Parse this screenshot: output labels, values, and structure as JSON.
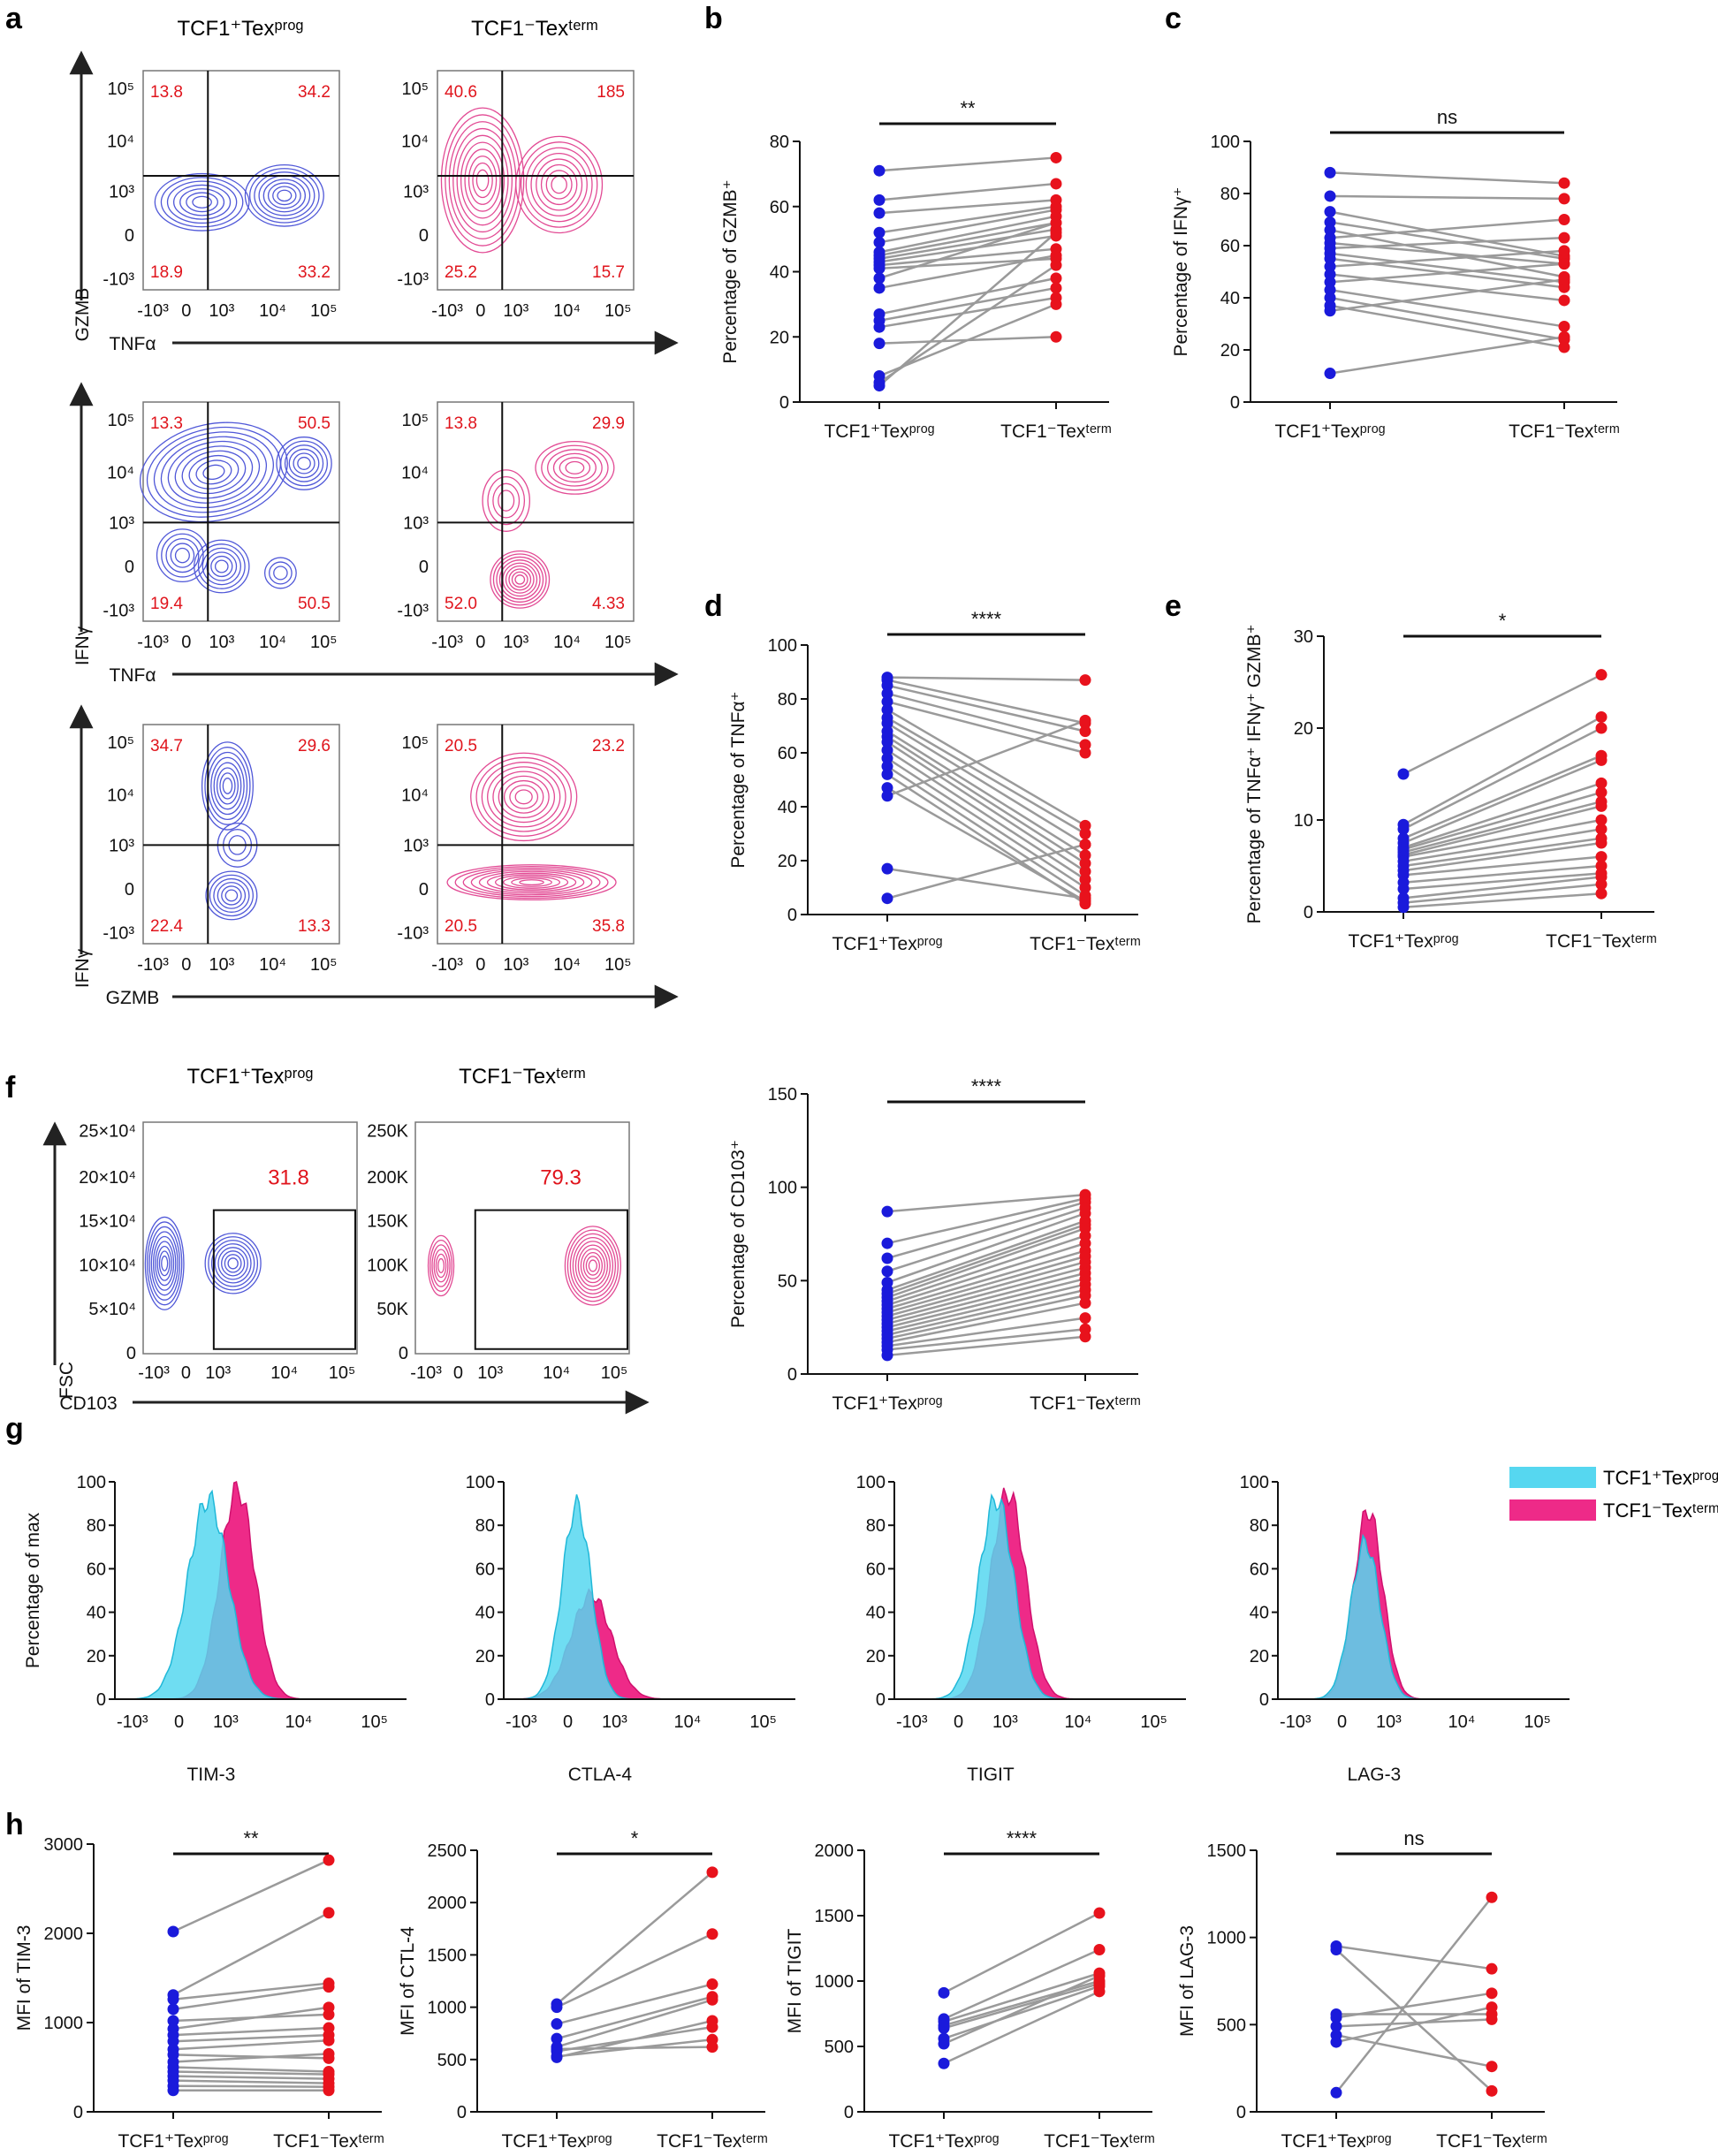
{
  "panel_labels": [
    "a",
    "b",
    "c",
    "d",
    "e",
    "f",
    "g",
    "h"
  ],
  "colors": {
    "prog": "#1a1adb",
    "term": "#e8121c",
    "prog_contour": "#5058d8",
    "term_contour": "#e24a94",
    "prog_fill": "#56d7f0",
    "term_fill": "#ee2a88",
    "overlap_fill": "#8a8ad2",
    "line": "#9a9a9a"
  },
  "flow_titles": {
    "prog": "TCF1⁺Texᵖʳᵒᵍ",
    "term": "TCF1⁻Texᵗᵉʳᵐ"
  },
  "group_labels": {
    "prog": "TCF1⁺Texᵖʳᵒᵍ",
    "term": "TCF1⁻Texᵗᵉʳᵐ"
  },
  "log_ticks": [
    "10⁵",
    "10⁴",
    "10³",
    "0",
    "-10³"
  ],
  "log_ticks_x": [
    "-10³",
    "0",
    "10³",
    "10⁴",
    "10⁵"
  ],
  "flow_rows": [
    {
      "x_axis": "TNFα",
      "y_axis": "GZMB",
      "prog": {
        "ul": "13.8",
        "ur": "34.2",
        "ll": "18.9",
        "lr": "33.2"
      },
      "term": {
        "ul": "40.6",
        "ur": "185",
        "ll": "25.2",
        "lr": "15.7"
      }
    },
    {
      "x_axis": "TNFα",
      "y_axis": "IFNγ",
      "prog": {
        "ul": "13.3",
        "ur": "50.5",
        "ll": "19.4",
        "lr": "50.5"
      },
      "term": {
        "ul": "13.8",
        "ur": "29.9",
        "ll": "52.0",
        "lr": "4.33"
      }
    },
    {
      "x_axis": "GZMB",
      "y_axis": "IFNγ",
      "prog": {
        "ul": "34.7",
        "ur": "29.6",
        "ll": "22.4",
        "lr": "13.3"
      },
      "term": {
        "ul": "20.5",
        "ur": "23.2",
        "ll": "20.5",
        "lr": "35.8"
      }
    }
  ],
  "cd103": {
    "x_axis": "CD103",
    "y_axis": "FSC",
    "prog_gate": "31.8",
    "term_gate": "79.3",
    "prog_yticks": [
      "25×10⁴",
      "20×10⁴",
      "15×10⁴",
      "10×10⁴",
      "5×10⁴",
      "0"
    ],
    "term_yticks": [
      "250K",
      "200K",
      "150K",
      "100K",
      "50K",
      "0"
    ]
  },
  "hist_legend": {
    "prog": "TCF1⁺Texᵖʳᵒᵍ",
    "term": "TCF1⁻Texᵗᵉʳᵐ"
  },
  "chart_data": [
    {
      "id": "b",
      "type": "scatter",
      "paired": true,
      "ylabel": "Percentage of GZMB⁺",
      "ylim": [
        0,
        80
      ],
      "yticks": [
        0,
        20,
        40,
        60,
        80
      ],
      "significance": "**",
      "prog": [
        71,
        62,
        58,
        52,
        49,
        46,
        45,
        44,
        43,
        42,
        41,
        38,
        35,
        27,
        25,
        23,
        18,
        8,
        6,
        5
      ],
      "term": [
        75,
        67,
        62,
        60,
        59,
        57,
        55,
        53,
        51,
        47,
        44,
        55,
        45,
        38,
        35,
        32,
        20,
        30,
        42,
        52
      ]
    },
    {
      "id": "c",
      "type": "scatter",
      "paired": true,
      "ylabel": "Percentage of IFNγ⁺",
      "ylim": [
        0,
        100
      ],
      "yticks": [
        0,
        20,
        40,
        60,
        80,
        100
      ],
      "significance": "ns",
      "prog": [
        88,
        79,
        73,
        69,
        66,
        63,
        61,
        59,
        57,
        55,
        52,
        49,
        46,
        43,
        40,
        37,
        35,
        11
      ],
      "term": [
        84,
        78,
        56,
        55,
        48,
        70,
        53,
        63,
        46,
        44,
        58,
        39,
        53,
        29,
        24,
        21,
        47,
        25
      ]
    },
    {
      "id": "d",
      "type": "scatter",
      "paired": true,
      "ylabel": "Percentage of TNFα⁺",
      "ylim": [
        0,
        100
      ],
      "yticks": [
        0,
        20,
        40,
        60,
        80,
        100
      ],
      "significance": "****",
      "prog": [
        88,
        87,
        85,
        82,
        79,
        76,
        73,
        71,
        68,
        66,
        64,
        61,
        58,
        55,
        52,
        47,
        44,
        17,
        6
      ],
      "term": [
        87,
        71,
        68,
        63,
        60,
        33,
        30,
        26,
        22,
        19,
        16,
        13,
        10,
        7,
        4,
        5,
        72,
        6,
        26
      ]
    },
    {
      "id": "e",
      "type": "scatter",
      "paired": true,
      "ylabel": "Percentage of TNFα⁺ IFNγ⁺ GZMB⁺",
      "ylim": [
        0,
        30
      ],
      "yticks": [
        0,
        10,
        20,
        30
      ],
      "significance": "*",
      "prog": [
        15,
        9.5,
        9,
        8,
        7.5,
        7,
        6.8,
        6.5,
        6.2,
        6,
        5.5,
        5,
        4.5,
        4,
        3.2,
        2.5,
        1.5,
        1,
        0.5
      ],
      "term": [
        25.8,
        21.2,
        20,
        17,
        16.5,
        14,
        13,
        12,
        11.5,
        10,
        9,
        8,
        7.5,
        6,
        5,
        4.2,
        3.8,
        3,
        2
      ]
    },
    {
      "id": "f",
      "type": "scatter",
      "paired": true,
      "ylabel": "Percentage of CD103⁺",
      "ylim": [
        0,
        150
      ],
      "yticks": [
        0,
        50,
        100,
        150
      ],
      "significance": "****",
      "prog": [
        87,
        70,
        62,
        55,
        49,
        45,
        43,
        41,
        39,
        37,
        35,
        33,
        31,
        29,
        27,
        25,
        23,
        21,
        19,
        17,
        15,
        13,
        10
      ],
      "term": [
        96,
        94,
        92,
        89,
        86,
        82,
        80,
        78,
        74,
        70,
        66,
        63,
        60,
        57,
        54,
        51,
        48,
        45,
        42,
        38,
        30,
        24,
        20
      ]
    },
    {
      "id": "h1",
      "type": "scatter",
      "paired": true,
      "ylabel": "MFI of TIM-3",
      "ylim": [
        0,
        3000
      ],
      "yticks": [
        0,
        1000,
        2000,
        3000
      ],
      "significance": "**",
      "prog": [
        2020,
        1310,
        1260,
        1150,
        1020,
        930,
        860,
        790,
        700,
        640,
        560,
        500,
        450,
        400,
        350,
        290,
        240
      ],
      "term": [
        2820,
        2230,
        1440,
        1400,
        1090,
        1170,
        940,
        860,
        800,
        600,
        650,
        450,
        420,
        370,
        320,
        280,
        240
      ]
    },
    {
      "id": "h2",
      "type": "scatter",
      "paired": true,
      "ylabel": "MFI of CTL-4",
      "ylim": [
        0,
        2500
      ],
      "yticks": [
        0,
        500,
        1000,
        1500,
        2000,
        2500
      ],
      "significance": "*",
      "prog": [
        1030,
        1000,
        840,
        700,
        580,
        530
      ],
      "term": [
        2290,
        1700,
        1220,
        1100,
        810,
        690
      ],
      "prog_extra": [
        520,
        600,
        620
      ],
      "term_extra": [
        870,
        620,
        1070
      ]
    },
    {
      "id": "h3",
      "type": "scatter",
      "paired": true,
      "ylabel": "MFI of TIGIT",
      "ylim": [
        0,
        2000
      ],
      "yticks": [
        0,
        500,
        1000,
        1500,
        2000
      ],
      "significance": "****",
      "prog": [
        910,
        710,
        690,
        660,
        640,
        560,
        520,
        370
      ],
      "term": [
        1520,
        1240,
        1060,
        1000,
        980,
        960,
        1040,
        920
      ]
    },
    {
      "id": "h4",
      "type": "scatter",
      "paired": true,
      "ylabel": "MFI of LAG-3",
      "ylim": [
        0,
        1500
      ],
      "yticks": [
        0,
        500,
        1000,
        1500
      ],
      "significance": "ns",
      "prog": [
        950,
        930,
        560,
        540,
        490,
        440,
        400,
        110
      ],
      "term": [
        820,
        120,
        560,
        680,
        530,
        260,
        600,
        1230
      ]
    }
  ],
  "histograms": [
    {
      "marker": "TIM-3",
      "prog_peak": 92,
      "term_peak": 97
    },
    {
      "marker": "CTLA-4",
      "prog_peak": 89,
      "term_peak": 48
    },
    {
      "marker": "TIGIT",
      "prog_peak": 92,
      "term_peak": 95
    },
    {
      "marker": "LAG-3",
      "prog_peak": 72,
      "term_peak": 87
    }
  ],
  "hist_axis": {
    "ylabel": "Percentage of max",
    "yticks": [
      "0",
      "20",
      "40",
      "60",
      "80",
      "100"
    ]
  }
}
